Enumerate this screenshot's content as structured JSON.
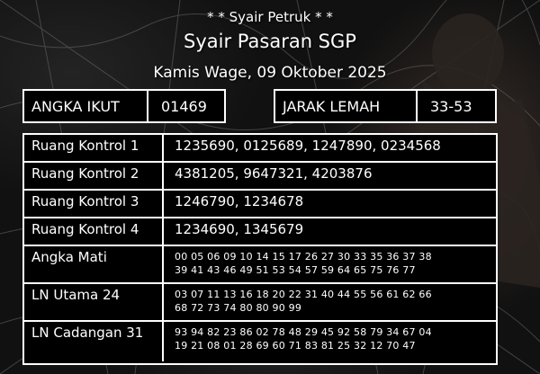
{
  "header": {
    "subtitle": "* * Syair Petruk * *",
    "title": "Syair Pasaran SGP",
    "date": "Kamis Wage, 09 Oktober 2025"
  },
  "angka_ikut": {
    "label": "ANGKA IKUT",
    "value": "01469"
  },
  "jarak_lemah": {
    "label": "JARAK LEMAH",
    "value": "33-53"
  },
  "rows": [
    {
      "label": "Ruang Kontrol 1",
      "value": "1235690, 0125689, 1247890, 0234568"
    },
    {
      "label": "Ruang Kontrol 2",
      "value": "4381205, 9647321, 4203876"
    },
    {
      "label": "Ruang Kontrol 3",
      "value": "1246790, 1234678"
    },
    {
      "label": "Ruang Kontrol 4",
      "value": "1234690, 1345679"
    },
    {
      "label": "Angka Mati",
      "line1": "00 05 06 09 10 14 15 17 26 27 30 33 35 36 37 38",
      "line2": "39 41 43 46 49 51 53 54 57 59 64 65 75 76 77"
    },
    {
      "label": "LN Utama 24",
      "line1": "03 07 11 13 16 18 20 22 31 40 44 55 56 61 62 66",
      "line2": "68 72 73 74 80 80 90 99"
    },
    {
      "label": "LN Cadangan 31",
      "line1": "93 94 82 23 86 02 78 48 29 45 92 58 79 34 67 04",
      "line2": "19 21 08 01 28 69 60 71 83 81 25 32 12 70 47"
    }
  ],
  "colors": {
    "text": "#ffffff",
    "box_bg": "#000000",
    "border": "#ffffff"
  }
}
